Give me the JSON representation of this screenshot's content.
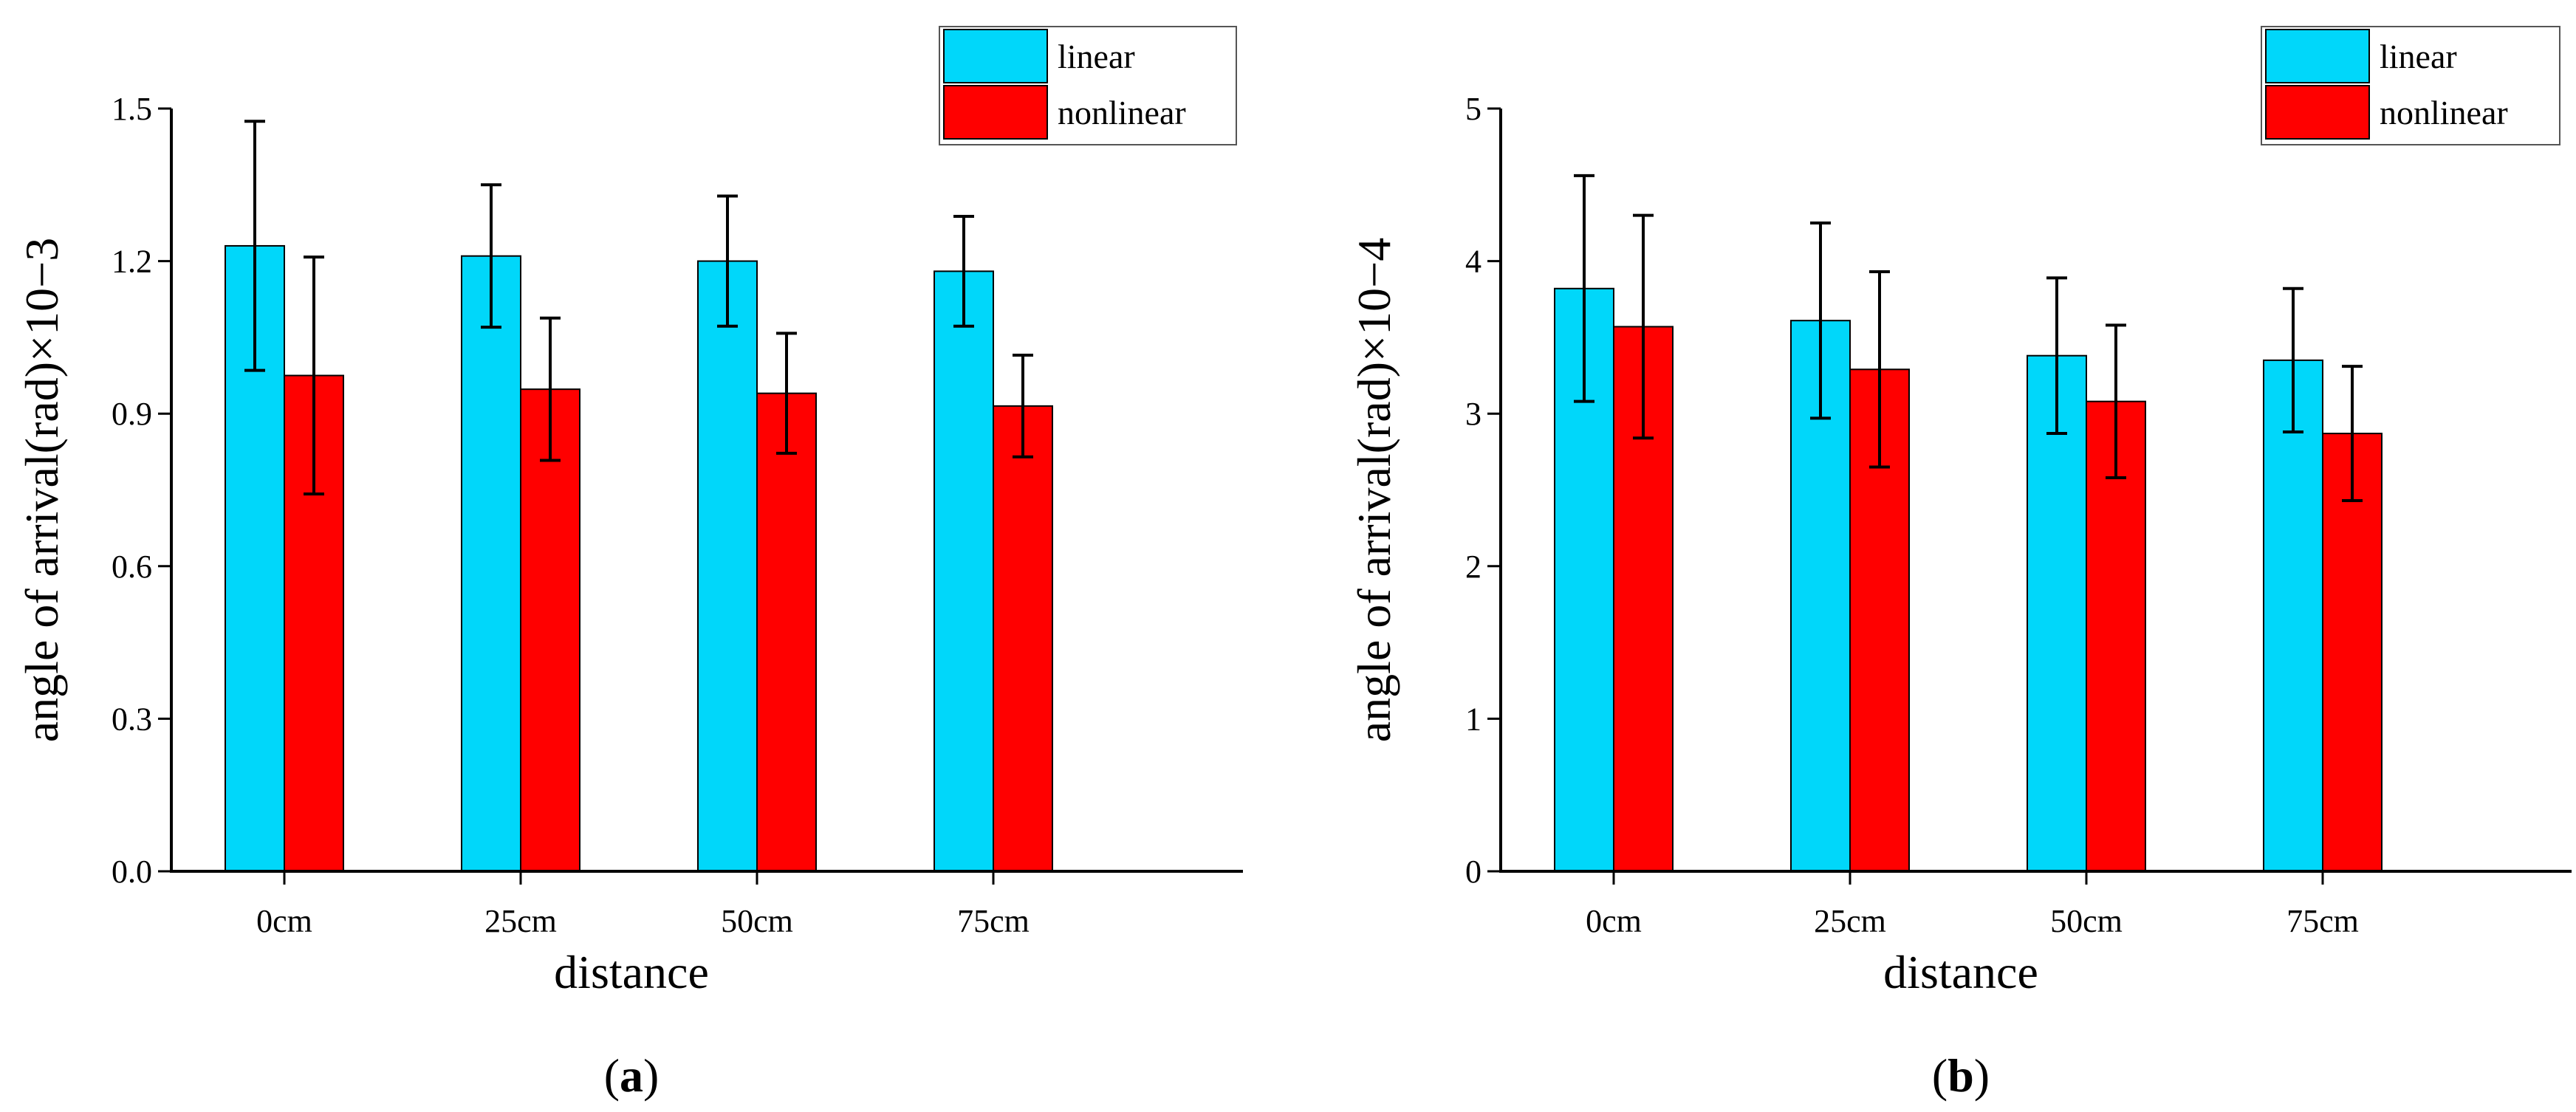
{
  "chart_data": [
    {
      "type": "bar",
      "panel_label": "a",
      "categories": [
        "0cm",
        "25cm",
        "50cm",
        "75cm"
      ],
      "series": [
        {
          "name": "linear",
          "color": "#00D7FA",
          "values": [
            1.23,
            1.21,
            1.2,
            1.18
          ],
          "errors": [
            0.245,
            0.14,
            0.128,
            0.108
          ]
        },
        {
          "name": "nonlinear",
          "color": "#FF0000",
          "values": [
            0.975,
            0.948,
            0.94,
            0.915
          ],
          "errors": [
            0.233,
            0.14,
            0.118,
            0.1
          ]
        }
      ],
      "xlabel": "distance",
      "ylabel": "angle of arrival(rad)×10−3",
      "ylim": [
        0,
        1.5
      ],
      "yticks": [
        "0.0",
        "0.3",
        "0.6",
        "0.9",
        "1.2",
        "1.5"
      ],
      "legend": "top-right"
    },
    {
      "type": "bar",
      "panel_label": "b",
      "categories": [
        "0cm",
        "25cm",
        "50cm",
        "75cm"
      ],
      "series": [
        {
          "name": "linear",
          "color": "#00D7FA",
          "values": [
            3.82,
            3.61,
            3.38,
            3.35
          ],
          "errors": [
            0.74,
            0.64,
            0.51,
            0.47
          ]
        },
        {
          "name": "nonlinear",
          "color": "#FF0000",
          "values": [
            3.57,
            3.29,
            3.08,
            2.87
          ],
          "errors": [
            0.73,
            0.64,
            0.5,
            0.44
          ]
        }
      ],
      "xlabel": "distance",
      "ylabel": "angle of arrival(rad)×10−4",
      "ylim": [
        0,
        5
      ],
      "yticks": [
        "0",
        "1",
        "2",
        "3",
        "4",
        "5"
      ],
      "legend": "top-right"
    }
  ]
}
